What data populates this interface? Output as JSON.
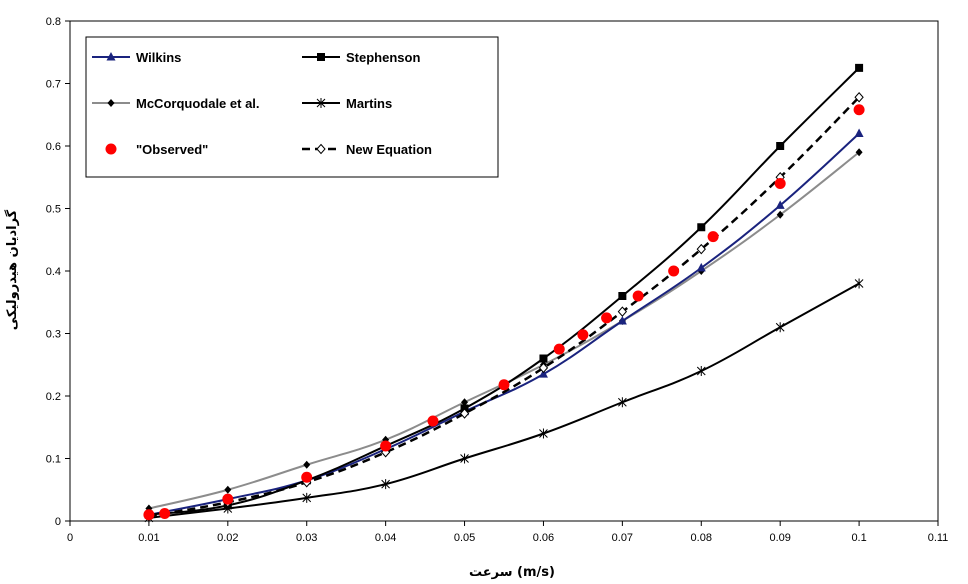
{
  "chart_data": {
    "type": "line",
    "title": "",
    "xlabel": "سرعت (m/s)",
    "ylabel": "گرادیان هیدرولیکی",
    "xlim": [
      0,
      0.11
    ],
    "ylim": [
      0,
      0.8
    ],
    "x_ticks": [
      "0",
      "0.01",
      "0.02",
      "0.03",
      "0.04",
      "0.05",
      "0.06",
      "0.07",
      "0.08",
      "0.09",
      "0.1",
      "0.11"
    ],
    "y_ticks": [
      "0",
      "0.1",
      "0.2",
      "0.3",
      "0.4",
      "0.5",
      "0.6",
      "0.7",
      "0.8"
    ],
    "grid": false,
    "legend_position": "top-left",
    "series": [
      {
        "name": "Wilkins",
        "color": "#1a237e",
        "marker": "triangle",
        "dash": false,
        "x": [
          0.01,
          0.02,
          0.03,
          0.04,
          0.05,
          0.06,
          0.07,
          0.08,
          0.09,
          0.1
        ],
        "y": [
          0.01,
          0.035,
          0.065,
          0.115,
          0.175,
          0.235,
          0.32,
          0.405,
          0.505,
          0.62
        ]
      },
      {
        "name": "Stephenson",
        "color": "#000000",
        "marker": "square",
        "dash": false,
        "x": [
          0.01,
          0.02,
          0.03,
          0.04,
          0.05,
          0.06,
          0.07,
          0.08,
          0.09,
          0.1
        ],
        "y": [
          0.01,
          0.025,
          0.065,
          0.12,
          0.18,
          0.26,
          0.36,
          0.47,
          0.6,
          0.725
        ]
      },
      {
        "name": "McCorquodale et al.",
        "color": "#8c8c8c",
        "marker": "diamond",
        "dash": false,
        "x": [
          0.01,
          0.02,
          0.03,
          0.04,
          0.05,
          0.06,
          0.07,
          0.08,
          0.09,
          0.1
        ],
        "y": [
          0.02,
          0.05,
          0.09,
          0.13,
          0.19,
          0.25,
          0.32,
          0.4,
          0.49,
          0.59
        ]
      },
      {
        "name": "Martins",
        "color": "#000000",
        "marker": "star",
        "dash": false,
        "x": [
          0.01,
          0.02,
          0.03,
          0.04,
          0.05,
          0.06,
          0.07,
          0.08,
          0.09,
          0.1
        ],
        "y": [
          0.005,
          0.02,
          0.037,
          0.059,
          0.1,
          0.14,
          0.19,
          0.24,
          0.31,
          0.38
        ]
      },
      {
        "name": "\"Observed\"",
        "color": "#ff0000",
        "marker": "circle",
        "line": false,
        "x": [
          0.01,
          0.012,
          0.02,
          0.03,
          0.04,
          0.046,
          0.055,
          0.062,
          0.065,
          0.068,
          0.072,
          0.0765,
          0.0815,
          0.09,
          0.1
        ],
        "y": [
          0.01,
          0.012,
          0.035,
          0.07,
          0.12,
          0.16,
          0.218,
          0.275,
          0.298,
          0.325,
          0.36,
          0.4,
          0.455,
          0.54,
          0.658
        ]
      },
      {
        "name": "New Equation",
        "color": "#000000",
        "marker": "diamond-open",
        "dash": true,
        "x": [
          0.01,
          0.02,
          0.03,
          0.04,
          0.05,
          0.06,
          0.07,
          0.08,
          0.09,
          0.1
        ],
        "y": [
          0.008,
          0.03,
          0.062,
          0.11,
          0.172,
          0.245,
          0.335,
          0.435,
          0.55,
          0.678
        ]
      }
    ]
  }
}
